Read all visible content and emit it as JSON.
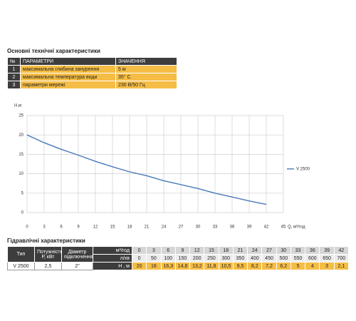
{
  "spec_title": "Основні технічні характеристики",
  "spec_table": {
    "header": [
      "№",
      "ПАРАМЕТРИ",
      "ЗНАЧЕННЯ"
    ],
    "rows": [
      [
        "1",
        "максимальна глибина занурення",
        "5 м"
      ],
      [
        "2",
        "максимальна температура води",
        "35° C"
      ],
      [
        "3",
        "параметри мережі",
        "230 В/50 Гц"
      ]
    ]
  },
  "chart_data": {
    "type": "line",
    "y_label": "H,м",
    "x_label": "Q, м³/год",
    "x": [
      0,
      3,
      6,
      9,
      12,
      15,
      18,
      21,
      24,
      27,
      30,
      33,
      36,
      39,
      42
    ],
    "series": [
      {
        "name": "V 2500",
        "color": "#4a7ab8",
        "values": [
          20,
          18,
          16.3,
          14.8,
          13.2,
          11.8,
          10.5,
          9.5,
          8.2,
          7.2,
          6.2,
          5,
          4,
          3,
          2.1
        ]
      }
    ],
    "xlim": [
      0,
      45
    ],
    "xticks": [
      0,
      3,
      6,
      9,
      12,
      15,
      18,
      21,
      24,
      27,
      30,
      33,
      36,
      39,
      42,
      45
    ],
    "ylim": [
      0,
      25
    ],
    "yticks": [
      0,
      5,
      10,
      15,
      20,
      25
    ],
    "grid": true,
    "legend": "right"
  },
  "hydraulic_title": "Гідравлічні характеристики",
  "hydraulic_table": {
    "header": [
      "Тип",
      "Потужність Р, кВт",
      "Дiаметр підключення"
    ],
    "flow_unit": "м³/год",
    "flow": [
      "0",
      "3",
      "6",
      "9",
      "12",
      "15",
      "18",
      "21",
      "24",
      "27",
      "30",
      "33",
      "36",
      "39",
      "42"
    ],
    "rate_unit": "л/хв",
    "rate": [
      "0",
      "50",
      "100",
      "150",
      "200",
      "250",
      "300",
      "350",
      "400",
      "450",
      "500",
      "550",
      "600",
      "650",
      "700"
    ],
    "model": "V 2500",
    "power": "2,5",
    "diameter": "2\"",
    "head_unit": "Н , м",
    "head": [
      "20",
      "18",
      "16,3",
      "14,8",
      "13,2",
      "11,8",
      "10,5",
      "9,5",
      "8,2",
      "7,2",
      "6,2",
      "5",
      "4",
      "3",
      "2,1"
    ]
  }
}
